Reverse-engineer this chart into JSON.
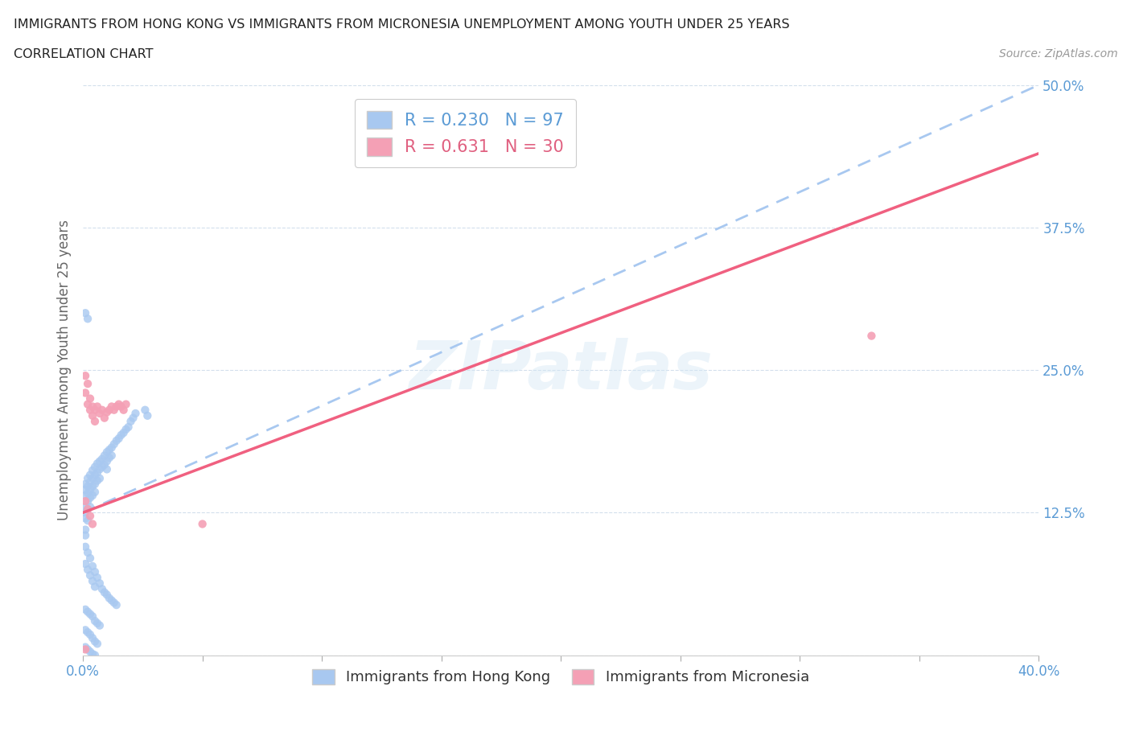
{
  "title_line1": "IMMIGRANTS FROM HONG KONG VS IMMIGRANTS FROM MICRONESIA UNEMPLOYMENT AMONG YOUTH UNDER 25 YEARS",
  "title_line2": "CORRELATION CHART",
  "source_text": "Source: ZipAtlas.com",
  "ylabel": "Unemployment Among Youth under 25 years",
  "xlim": [
    0.0,
    0.4
  ],
  "ylim": [
    0.0,
    0.5
  ],
  "xticks": [
    0.0,
    0.05,
    0.1,
    0.15,
    0.2,
    0.25,
    0.3,
    0.35,
    0.4
  ],
  "yticks": [
    0.0,
    0.125,
    0.25,
    0.375,
    0.5
  ],
  "hk_color": "#a8c8f0",
  "mic_color": "#f4a0b5",
  "mic_line_color": "#f06080",
  "hk_line_color": "#a8c8f0",
  "hk_R": 0.23,
  "hk_N": 97,
  "mic_R": 0.631,
  "mic_N": 30,
  "legend_label_hk": "Immigrants from Hong Kong",
  "legend_label_mic": "Immigrants from Micronesia",
  "watermark_text": "ZIPatlas",
  "hk_trend_x0": 0.0,
  "hk_trend_y0": 0.125,
  "hk_trend_x1": 0.4,
  "hk_trend_y1": 0.5,
  "mic_trend_x0": 0.0,
  "mic_trend_y0": 0.125,
  "mic_trend_x1": 0.4,
  "mic_trend_y1": 0.44,
  "hk_scatter_x": [
    0.001,
    0.001,
    0.001,
    0.001,
    0.001,
    0.001,
    0.001,
    0.001,
    0.002,
    0.002,
    0.002,
    0.002,
    0.002,
    0.002,
    0.003,
    0.003,
    0.003,
    0.003,
    0.003,
    0.004,
    0.004,
    0.004,
    0.004,
    0.005,
    0.005,
    0.005,
    0.005,
    0.006,
    0.006,
    0.006,
    0.007,
    0.007,
    0.007,
    0.008,
    0.008,
    0.009,
    0.009,
    0.01,
    0.01,
    0.01,
    0.011,
    0.011,
    0.012,
    0.012,
    0.013,
    0.014,
    0.015,
    0.016,
    0.017,
    0.018,
    0.019,
    0.02,
    0.021,
    0.022,
    0.001,
    0.001,
    0.002,
    0.002,
    0.003,
    0.003,
    0.004,
    0.004,
    0.005,
    0.005,
    0.006,
    0.007,
    0.008,
    0.009,
    0.01,
    0.011,
    0.012,
    0.013,
    0.014,
    0.001,
    0.002,
    0.003,
    0.004,
    0.005,
    0.006,
    0.007,
    0.001,
    0.002,
    0.003,
    0.004,
    0.005,
    0.006,
    0.001,
    0.002,
    0.001,
    0.002,
    0.003,
    0.004,
    0.005,
    0.026,
    0.027
  ],
  "hk_scatter_y": [
    0.15,
    0.145,
    0.14,
    0.13,
    0.125,
    0.12,
    0.11,
    0.105,
    0.155,
    0.148,
    0.142,
    0.135,
    0.128,
    0.118,
    0.158,
    0.152,
    0.145,
    0.138,
    0.13,
    0.162,
    0.155,
    0.148,
    0.14,
    0.165,
    0.158,
    0.15,
    0.143,
    0.168,
    0.16,
    0.153,
    0.17,
    0.163,
    0.155,
    0.172,
    0.165,
    0.175,
    0.167,
    0.178,
    0.17,
    0.163,
    0.18,
    0.173,
    0.182,
    0.175,
    0.185,
    0.188,
    0.19,
    0.193,
    0.195,
    0.198,
    0.2,
    0.205,
    0.208,
    0.212,
    0.095,
    0.08,
    0.09,
    0.075,
    0.085,
    0.07,
    0.078,
    0.065,
    0.073,
    0.06,
    0.068,
    0.063,
    0.058,
    0.055,
    0.053,
    0.05,
    0.048,
    0.046,
    0.044,
    0.04,
    0.038,
    0.036,
    0.034,
    0.03,
    0.028,
    0.026,
    0.022,
    0.02,
    0.018,
    0.015,
    0.012,
    0.01,
    0.3,
    0.295,
    0.007,
    0.005,
    0.003,
    0.001,
    0.0,
    0.215,
    0.21
  ],
  "mic_scatter_x": [
    0.001,
    0.001,
    0.002,
    0.002,
    0.003,
    0.003,
    0.004,
    0.004,
    0.005,
    0.005,
    0.006,
    0.007,
    0.008,
    0.009,
    0.01,
    0.011,
    0.012,
    0.013,
    0.014,
    0.015,
    0.016,
    0.017,
    0.018,
    0.001,
    0.002,
    0.003,
    0.004,
    0.05,
    0.001,
    0.33
  ],
  "mic_scatter_y": [
    0.245,
    0.23,
    0.238,
    0.22,
    0.225,
    0.215,
    0.218,
    0.21,
    0.215,
    0.205,
    0.218,
    0.212,
    0.215,
    0.208,
    0.213,
    0.215,
    0.218,
    0.215,
    0.218,
    0.22,
    0.218,
    0.215,
    0.22,
    0.135,
    0.128,
    0.122,
    0.115,
    0.115,
    0.005,
    0.28
  ]
}
